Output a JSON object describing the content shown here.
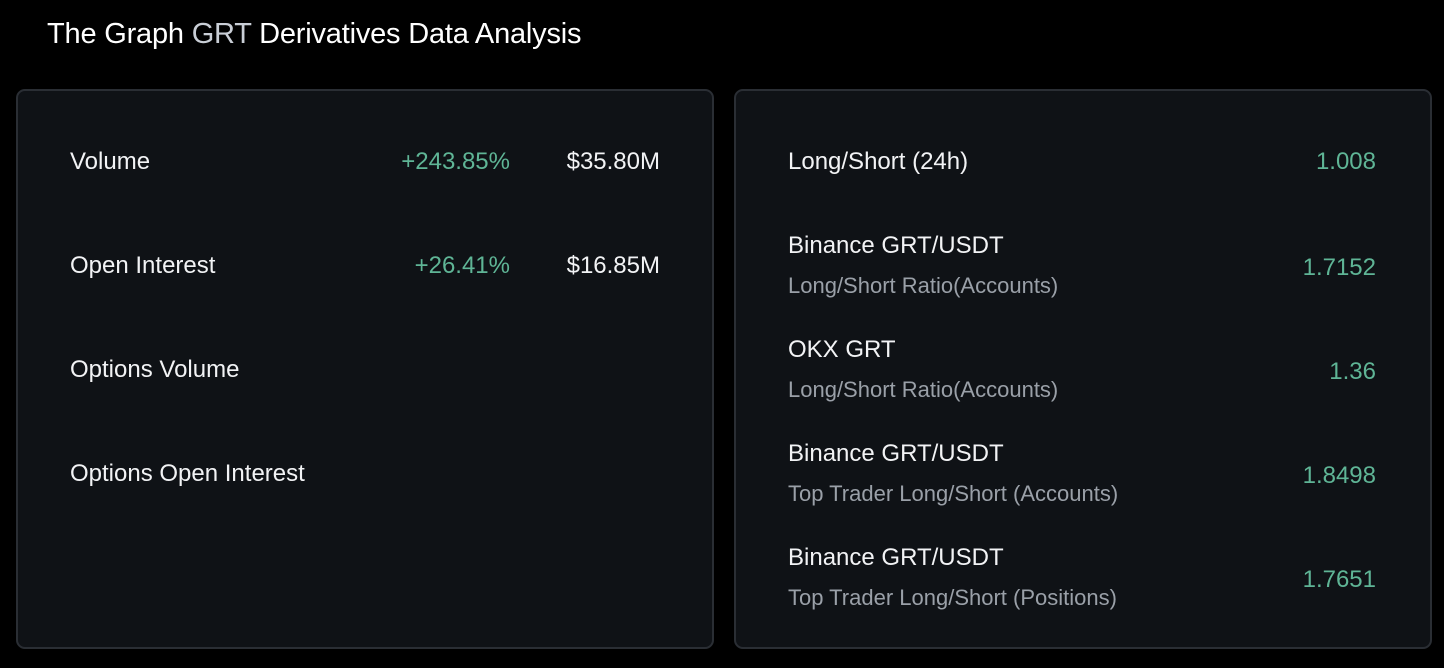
{
  "header": {
    "title_prefix": "The Graph ",
    "title_symbol": "GRT",
    "title_suffix": " Derivatives Data Analysis"
  },
  "colors": {
    "background": "#000000",
    "card_background": "#0f1216",
    "card_border": "#2a2e34",
    "positive": "#5fb596",
    "text_primary": "#f2f3f5",
    "text_secondary": "#9aa0a8"
  },
  "overview": {
    "rows": [
      {
        "label": "Volume",
        "change": "+243.85%",
        "value": "$35.80M"
      },
      {
        "label": "Open Interest",
        "change": "+26.41%",
        "value": "$16.85M"
      },
      {
        "label": "Options Volume",
        "change": "",
        "value": ""
      },
      {
        "label": "Options Open Interest",
        "change": "",
        "value": ""
      }
    ]
  },
  "long_short": {
    "rows": [
      {
        "name": "Long/Short (24h)",
        "sub": "",
        "ratio": "1.008"
      },
      {
        "name": "Binance GRT/USDT",
        "sub": "Long/Short Ratio(Accounts)",
        "ratio": "1.7152"
      },
      {
        "name": "OKX GRT",
        "sub": "Long/Short Ratio(Accounts)",
        "ratio": "1.36"
      },
      {
        "name": "Binance GRT/USDT",
        "sub": "Top Trader Long/Short (Accounts)",
        "ratio": "1.8498"
      },
      {
        "name": "Binance GRT/USDT",
        "sub": "Top Trader Long/Short (Positions)",
        "ratio": "1.7651"
      }
    ]
  }
}
